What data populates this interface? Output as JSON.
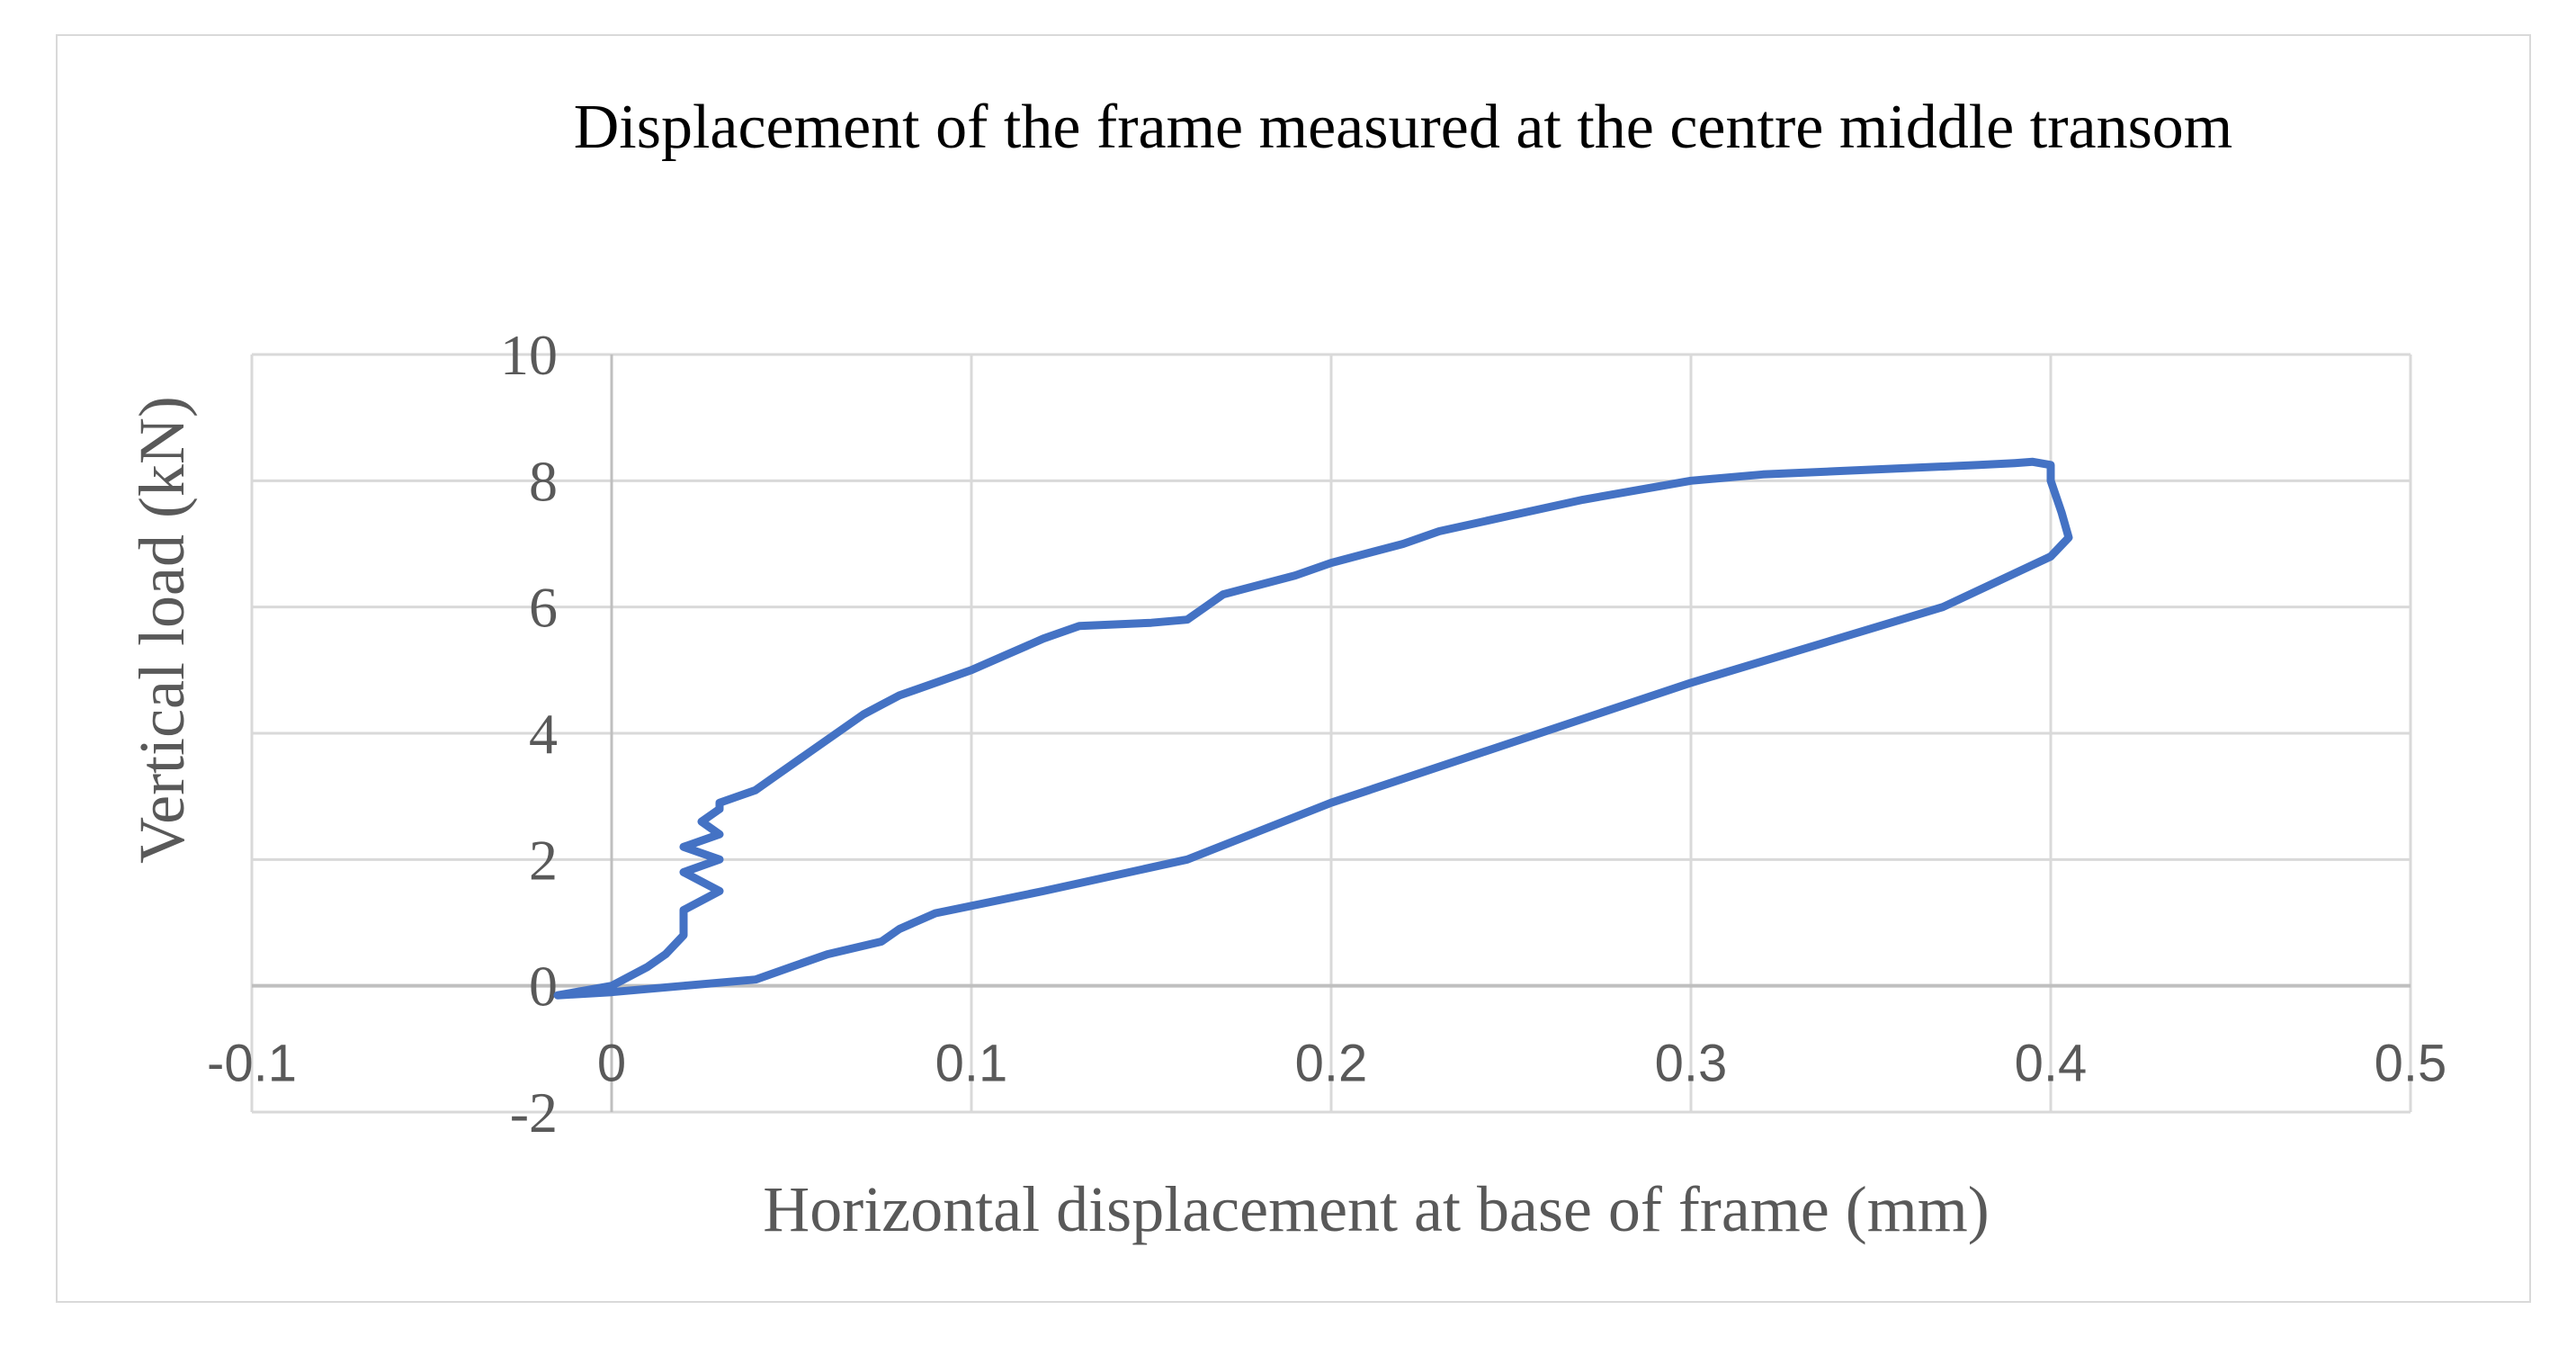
{
  "chart_data": {
    "type": "line",
    "title": "Displacement of the frame measured at the centre middle transom",
    "xlabel": "Horizontal displacement at base of frame (mm)",
    "ylabel": "Vertical load (kN)",
    "xlim": [
      -0.1,
      0.5
    ],
    "ylim": [
      -2,
      10
    ],
    "x_ticks": [
      "-0.1",
      "0",
      "0.1",
      "0.2",
      "0.3",
      "0.4",
      "0.5"
    ],
    "y_ticks": [
      "-2",
      "0",
      "2",
      "4",
      "6",
      "8",
      "10"
    ],
    "grid": true,
    "legend": "none",
    "series": [
      {
        "color": "#4472c4",
        "x": [
          -0.015,
          0.0,
          0.01,
          0.015,
          0.02,
          0.02,
          0.03,
          0.02,
          0.03,
          0.02,
          0.03,
          0.025,
          0.03,
          0.03,
          0.04,
          0.045,
          0.05,
          0.055,
          0.06,
          0.065,
          0.07,
          0.075,
          0.08,
          0.09,
          0.1,
          0.11,
          0.12,
          0.13,
          0.15,
          0.16,
          0.165,
          0.17,
          0.18,
          0.19,
          0.2,
          0.21,
          0.22,
          0.23,
          0.25,
          0.27,
          0.29,
          0.3,
          0.32,
          0.34,
          0.36,
          0.38,
          0.39,
          0.395,
          0.4,
          0.4,
          0.403,
          0.405,
          0.4,
          0.37,
          0.3,
          0.2,
          0.16,
          0.12,
          0.09,
          0.08,
          0.075,
          0.06,
          0.05,
          0.04,
          0.02,
          0.0,
          -0.015
        ],
        "y": [
          -0.15,
          0.0,
          0.3,
          0.5,
          0.8,
          1.2,
          1.5,
          1.8,
          2.0,
          2.2,
          2.4,
          2.6,
          2.8,
          2.9,
          3.1,
          3.3,
          3.5,
          3.7,
          3.9,
          4.1,
          4.3,
          4.45,
          4.6,
          4.8,
          5.0,
          5.25,
          5.5,
          5.7,
          5.75,
          5.8,
          6.0,
          6.2,
          6.35,
          6.5,
          6.7,
          6.85,
          7.0,
          7.2,
          7.45,
          7.7,
          7.9,
          8.0,
          8.1,
          8.15,
          8.2,
          8.25,
          8.28,
          8.3,
          8.25,
          8.0,
          7.5,
          7.1,
          6.8,
          6.0,
          4.8,
          2.9,
          2.0,
          1.5,
          1.15,
          0.9,
          0.7,
          0.5,
          0.3,
          0.1,
          0.0,
          -0.1,
          -0.15
        ]
      }
    ]
  }
}
